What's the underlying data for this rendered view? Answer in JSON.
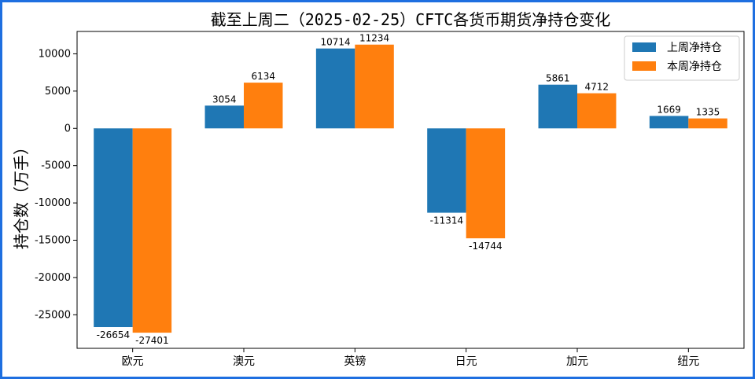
{
  "chart_data": {
    "type": "bar",
    "title": "截至上周二（2025-02-25）CFTC各货币期货净持仓变化",
    "xlabel": "",
    "ylabel": "持仓数（万手）",
    "categories": [
      "欧元",
      "澳元",
      "英镑",
      "日元",
      "加元",
      "纽元"
    ],
    "series": [
      {
        "name": "上周净持仓",
        "color": "#1f77b4",
        "values": [
          -26654,
          3054,
          10714,
          -11314,
          5861,
          1669
        ]
      },
      {
        "name": "本周净持仓",
        "color": "#ff7f0e",
        "values": [
          -27401,
          6134,
          11234,
          -14744,
          4712,
          1335
        ]
      }
    ],
    "ylim": [
      -29500,
      13000
    ],
    "yticks": [
      -25000,
      -20000,
      -15000,
      -10000,
      -5000,
      0,
      5000,
      10000
    ],
    "grid": false,
    "legend_position": "top-right",
    "data_labels": true
  }
}
